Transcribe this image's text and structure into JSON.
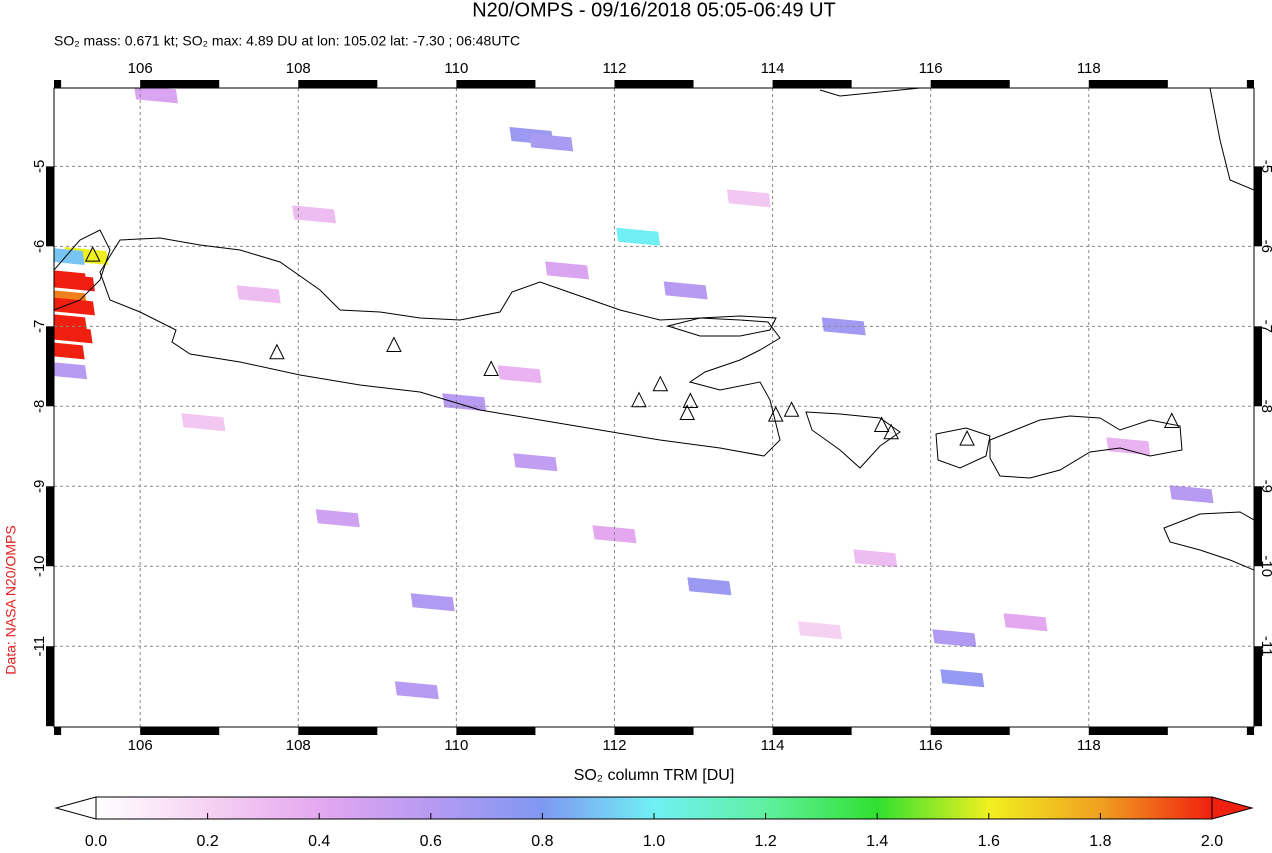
{
  "chart_data": {
    "type": "map",
    "title": "N20/OMPS - 09/16/2018 05:05-06:49 UT",
    "subtitle": "SO₂ mass: 0.671 kt; SO₂ max: 4.89 DU at lon: 105.02 lat: -7.30 ; 06:48UTC",
    "credit": "Data: NASA N20/OMPS",
    "xlim": [
      104.91,
      120.09
    ],
    "ylim": [
      -12.01,
      -4.02
    ],
    "xticks": [
      106,
      108,
      110,
      112,
      114,
      116,
      118
    ],
    "yticks": [
      -5,
      -6,
      -7,
      -8,
      -9,
      -10,
      -11
    ],
    "grid": true,
    "cells": {
      "lon": [
        105.05,
        105.15,
        105.05,
        105.15,
        105.05,
        105.12,
        105.02,
        105.32,
        105.02,
        105.05,
        110.95,
        111.2,
        112.3,
        110.1,
        114.9,
        112.9,
        113.2,
        111.0,
        108.5,
        109.7,
        116.3,
        119.3,
        116.4,
        109.5,
        110.8,
        107.5,
        113.7,
        117.2,
        106.2,
        112.0,
        118.5,
        108.2,
        111.4,
        115.3,
        106.8,
        114.6
      ],
      "lat": [
        -6.4,
        -6.45,
        -6.65,
        -6.75,
        -6.95,
        -7.1,
        -7.3,
        -6.12,
        -6.12,
        -7.55,
        -4.62,
        -4.7,
        -5.88,
        -7.95,
        -7.0,
        -6.55,
        -10.25,
        -8.7,
        -9.4,
        -10.45,
        -10.9,
        -9.1,
        -11.4,
        -11.55,
        -7.6,
        -6.6,
        -5.4,
        -10.7,
        -4.1,
        -9.6,
        -8.5,
        -5.6,
        -6.3,
        -9.9,
        -8.2,
        -10.8
      ],
      "values": [
        2.3,
        2.1,
        1.85,
        2.2,
        2.5,
        2.0,
        4.89,
        1.6,
        0.9,
        0.6,
        0.7,
        0.65,
        1.0,
        0.6,
        0.68,
        0.6,
        0.7,
        0.55,
        0.5,
        0.62,
        0.62,
        0.6,
        0.72,
        0.6,
        0.35,
        0.3,
        0.25,
        0.4,
        0.45,
        0.4,
        0.35,
        0.3,
        0.45,
        0.3,
        0.25,
        0.2
      ]
    },
    "volcanoes": {
      "lon": [
        105.4,
        107.73,
        109.21,
        110.44,
        112.31,
        112.58,
        112.96,
        112.92,
        114.04,
        114.24,
        115.38,
        115.5,
        116.46,
        119.05
      ],
      "lat": [
        -6.11,
        -7.33,
        -7.24,
        -7.54,
        -7.93,
        -7.73,
        -7.94,
        -8.09,
        -8.11,
        -8.05,
        -8.24,
        -8.33,
        -8.41,
        -8.19
      ]
    },
    "colorbar": {
      "label": "SO₂ column TRM [DU]",
      "lim": [
        0,
        2
      ],
      "ticks": [
        {
          "value": 0,
          "label": "0.0"
        },
        {
          "value": 0.2,
          "label": "0.2"
        },
        {
          "value": 0.4,
          "label": "0.4"
        },
        {
          "value": 0.6,
          "label": "0.6"
        },
        {
          "value": 0.8,
          "label": "0.8"
        },
        {
          "value": 1,
          "label": "1.0"
        },
        {
          "value": 1.2,
          "label": "1.2"
        },
        {
          "value": 1.4,
          "label": "1.4"
        },
        {
          "value": 1.6,
          "label": "1.6"
        },
        {
          "value": 1.8,
          "label": "1.8"
        },
        {
          "value": 2,
          "label": "2.0"
        }
      ]
    }
  }
}
